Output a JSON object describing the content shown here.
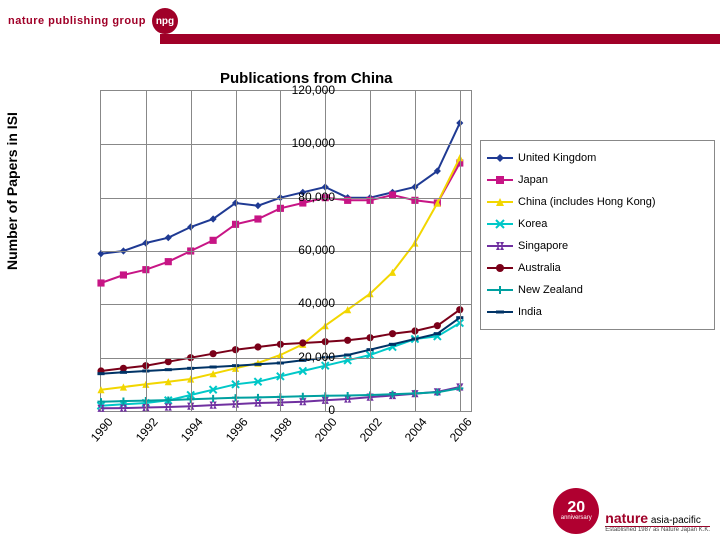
{
  "brand": {
    "text": "nature publishing group",
    "logo_label": "npg"
  },
  "footer": {
    "asia": "asia-pacific",
    "nature": "nature",
    "twenty": "20",
    "th": "th",
    "anniv": "anniversary",
    "est": "Established 1987 as Nature Japan K.K."
  },
  "chart": {
    "type": "line",
    "title": "Publications from China",
    "ylabel": "Number of Papers in ISI",
    "background_color": "#ffffff",
    "grid_color": "#888888",
    "xlim": [
      1990,
      2006.5
    ],
    "ylim": [
      0,
      120000
    ],
    "yticks": [
      0,
      20000,
      40000,
      60000,
      80000,
      100000,
      120000
    ],
    "ytick_labels": [
      "0",
      "20,000",
      "40,000",
      "60,000",
      "80,000",
      "100,000",
      "120,000"
    ],
    "xticks": [
      1990,
      1992,
      1994,
      1996,
      1998,
      2000,
      2002,
      2004,
      2006
    ],
    "xtick_labels": [
      "1990",
      "1992",
      "1994",
      "1996",
      "1998",
      "2000",
      "2002",
      "2004",
      "2006"
    ],
    "years": [
      1990,
      1991,
      1992,
      1993,
      1994,
      1995,
      1996,
      1997,
      1998,
      1999,
      2000,
      2001,
      2002,
      2003,
      2004,
      2005,
      2006
    ],
    "series": [
      {
        "name": "United Kingdom",
        "color": "#1f3a93",
        "marker": "diamond",
        "values": [
          59000,
          60000,
          63000,
          65000,
          69000,
          72000,
          78000,
          77000,
          80000,
          82000,
          84000,
          80000,
          80000,
          82000,
          84000,
          90000,
          108000
        ]
      },
      {
        "name": "Japan",
        "color": "#c71585",
        "marker": "square",
        "values": [
          48000,
          51000,
          53000,
          56000,
          60000,
          64000,
          70000,
          72000,
          76000,
          78000,
          80000,
          79000,
          79000,
          81000,
          79000,
          78000,
          93000
        ]
      },
      {
        "name": "China (includes Hong Kong)",
        "color": "#f2d600",
        "marker": "triangle",
        "values": [
          8000,
          9000,
          10000,
          11000,
          12000,
          14000,
          16000,
          18000,
          21000,
          25000,
          32000,
          38000,
          44000,
          52000,
          63000,
          78000,
          95000
        ]
      },
      {
        "name": "Korea",
        "color": "#00c8c8",
        "marker": "x",
        "values": [
          2000,
          2500,
          3000,
          4000,
          6000,
          8000,
          10000,
          11000,
          13000,
          15000,
          17000,
          19000,
          21000,
          24000,
          27000,
          28000,
          33000
        ]
      },
      {
        "name": "Singapore",
        "color": "#7030a0",
        "marker": "star",
        "values": [
          1000,
          1100,
          1300,
          1500,
          1800,
          2200,
          2600,
          3000,
          3200,
          3500,
          4000,
          4500,
          5200,
          5800,
          6500,
          7200,
          9000
        ]
      },
      {
        "name": "Australia",
        "color": "#7a0019",
        "marker": "circle",
        "values": [
          15000,
          16000,
          17000,
          18500,
          20000,
          21500,
          23000,
          24000,
          25000,
          25500,
          26000,
          26500,
          27500,
          29000,
          30000,
          32000,
          38000
        ]
      },
      {
        "name": "New Zealand",
        "color": "#00a0a0",
        "marker": "plus",
        "values": [
          3500,
          3700,
          3900,
          4100,
          4400,
          4700,
          5000,
          5100,
          5300,
          5500,
          5700,
          5800,
          6000,
          6300,
          6600,
          7000,
          8500
        ]
      },
      {
        "name": "India",
        "color": "#003366",
        "marker": "dash",
        "values": [
          14000,
          14500,
          15000,
          15500,
          16000,
          16500,
          17000,
          17500,
          18000,
          19000,
          20000,
          21000,
          23000,
          25000,
          27000,
          29000,
          35000
        ]
      }
    ],
    "title_fontsize": 15,
    "label_fontsize": 14,
    "tick_fontsize": 12,
    "legend_fontsize": 11,
    "line_width": 2,
    "marker_size": 5
  }
}
